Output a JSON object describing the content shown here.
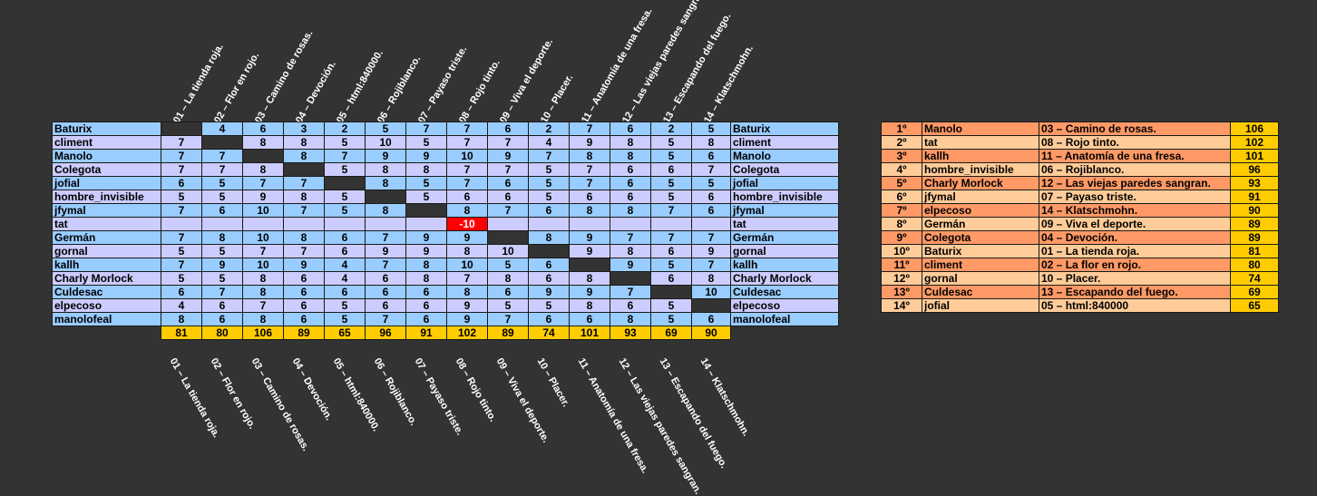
{
  "columns": [
    "01 – La tienda roja.",
    "02 – Flor en rojo.",
    "03 – Camino de rosas.",
    "04 – Devoción.",
    "05 – html:840000.",
    "06 – Rojiblanco.",
    "07 – Payaso triste.",
    "08 – Rojo tinto.",
    "09 – Viva el deporte.",
    "10 – Placer.",
    "11 – Anatomía de una fresa.",
    "12 – Las viejas paredes sangran.",
    "13 – Escapando del fuego.",
    "14 – Klatschmohn."
  ],
  "rows": [
    {
      "name": "Baturix",
      "scores": [
        "",
        "4",
        "6",
        "3",
        "2",
        "5",
        "7",
        "7",
        "6",
        "2",
        "7",
        "6",
        "2",
        "5"
      ],
      "self": 0
    },
    {
      "name": "climent",
      "scores": [
        "7",
        "",
        "8",
        "8",
        "5",
        "10",
        "5",
        "7",
        "7",
        "4",
        "9",
        "8",
        "5",
        "8"
      ],
      "self": 1
    },
    {
      "name": "Manolo",
      "scores": [
        "7",
        "7",
        "",
        "8",
        "7",
        "9",
        "9",
        "10",
        "9",
        "7",
        "8",
        "8",
        "5",
        "6"
      ],
      "self": 2
    },
    {
      "name": "Colegota",
      "scores": [
        "7",
        "7",
        "8",
        "",
        "5",
        "8",
        "8",
        "7",
        "7",
        "5",
        "7",
        "6",
        "6",
        "7"
      ],
      "self": 3
    },
    {
      "name": "jofial",
      "scores": [
        "6",
        "5",
        "7",
        "7",
        "",
        "8",
        "5",
        "7",
        "6",
        "5",
        "7",
        "6",
        "5",
        "5"
      ],
      "self": 4
    },
    {
      "name": "hombre_invisible",
      "scores": [
        "5",
        "5",
        "9",
        "8",
        "5",
        "",
        "5",
        "6",
        "6",
        "5",
        "6",
        "6",
        "5",
        "6"
      ],
      "self": 5
    },
    {
      "name": "jfymal",
      "scores": [
        "7",
        "6",
        "10",
        "7",
        "5",
        "8",
        "",
        "8",
        "7",
        "6",
        "8",
        "8",
        "7",
        "6"
      ],
      "self": 6
    },
    {
      "name": "tat",
      "scores": [
        "",
        "",
        "",
        "",
        "",
        "",
        "",
        "-10",
        "",
        "",
        "",
        "",
        "",
        ""
      ],
      "self": -1,
      "neg": 7
    },
    {
      "name": "Germán",
      "scores": [
        "7",
        "8",
        "10",
        "8",
        "6",
        "7",
        "9",
        "9",
        "",
        "8",
        "9",
        "7",
        "7",
        "7"
      ],
      "self": 8
    },
    {
      "name": "gornal",
      "scores": [
        "5",
        "5",
        "7",
        "7",
        "6",
        "9",
        "9",
        "8",
        "10",
        "",
        "9",
        "8",
        "6",
        "9"
      ],
      "self": 9
    },
    {
      "name": "kallh",
      "scores": [
        "7",
        "9",
        "10",
        "9",
        "4",
        "7",
        "8",
        "10",
        "5",
        "6",
        "",
        "9",
        "5",
        "7"
      ],
      "self": 10
    },
    {
      "name": "Charly Morlock",
      "scores": [
        "5",
        "5",
        "8",
        "6",
        "4",
        "6",
        "8",
        "7",
        "8",
        "6",
        "8",
        "",
        "6",
        "8"
      ],
      "self": 11
    },
    {
      "name": "Culdesac",
      "scores": [
        "6",
        "7",
        "8",
        "6",
        "6",
        "6",
        "6",
        "8",
        "6",
        "9",
        "9",
        "7",
        "",
        "10"
      ],
      "self": 12
    },
    {
      "name": "elpecoso",
      "scores": [
        "4",
        "6",
        "7",
        "6",
        "5",
        "6",
        "6",
        "9",
        "5",
        "5",
        "8",
        "6",
        "5",
        ""
      ],
      "self": 13
    },
    {
      "name": "manolofeal",
      "scores": [
        "8",
        "6",
        "8",
        "6",
        "5",
        "7",
        "6",
        "9",
        "7",
        "6",
        "6",
        "8",
        "5",
        "6"
      ],
      "self": -1
    }
  ],
  "totals": [
    "81",
    "80",
    "106",
    "89",
    "65",
    "96",
    "91",
    "102",
    "89",
    "74",
    "101",
    "93",
    "69",
    "90"
  ],
  "ranking": [
    {
      "pos": "1º",
      "user": "Manolo",
      "song": "03 – Camino de rosas.",
      "points": "106"
    },
    {
      "pos": "2º",
      "user": "tat",
      "song": "08 – Rojo tinto.",
      "points": "102"
    },
    {
      "pos": "3º",
      "user": "kallh",
      "song": "11 – Anatomía de una fresa.",
      "points": "101"
    },
    {
      "pos": "4º",
      "user": "hombre_invisible",
      "song": "06 – Rojiblanco.",
      "points": "96"
    },
    {
      "pos": "5º",
      "user": "Charly Morlock",
      "song": "12 – Las viejas paredes sangran.",
      "points": "93"
    },
    {
      "pos": "6º",
      "user": "jfymal",
      "song": "07 – Payaso triste.",
      "points": "91"
    },
    {
      "pos": "7º",
      "user": "elpecoso",
      "song": "14 – Klatschmohn.",
      "points": "90"
    },
    {
      "pos": "8º",
      "user": "Germán",
      "song": "09 – Viva el deporte.",
      "points": "89"
    },
    {
      "pos": "9º",
      "user": "Colegota",
      "song": "04 – Devoción.",
      "points": "89"
    },
    {
      "pos": "10º",
      "user": "Baturix",
      "song": "01 – La tienda roja.",
      "points": "81"
    },
    {
      "pos": "11º",
      "user": "climent",
      "song": "02 – La flor en rojo.",
      "points": "80"
    },
    {
      "pos": "12º",
      "user": "gornal",
      "song": "10 – Placer.",
      "points": "74"
    },
    {
      "pos": "13º",
      "user": "Culdesac",
      "song": "13 – Escapando del fuego.",
      "points": "69"
    },
    {
      "pos": "14º",
      "user": "jofial",
      "song": "05 – html:840000",
      "points": "65"
    }
  ],
  "colors": {
    "background": "#333333",
    "row_blue": "#99ccff",
    "row_lilac": "#ccccff",
    "totals": "#ffcc00",
    "negative": "#ff0000",
    "rank_orange": "#ff9966",
    "rank_peach": "#ffcc99"
  }
}
